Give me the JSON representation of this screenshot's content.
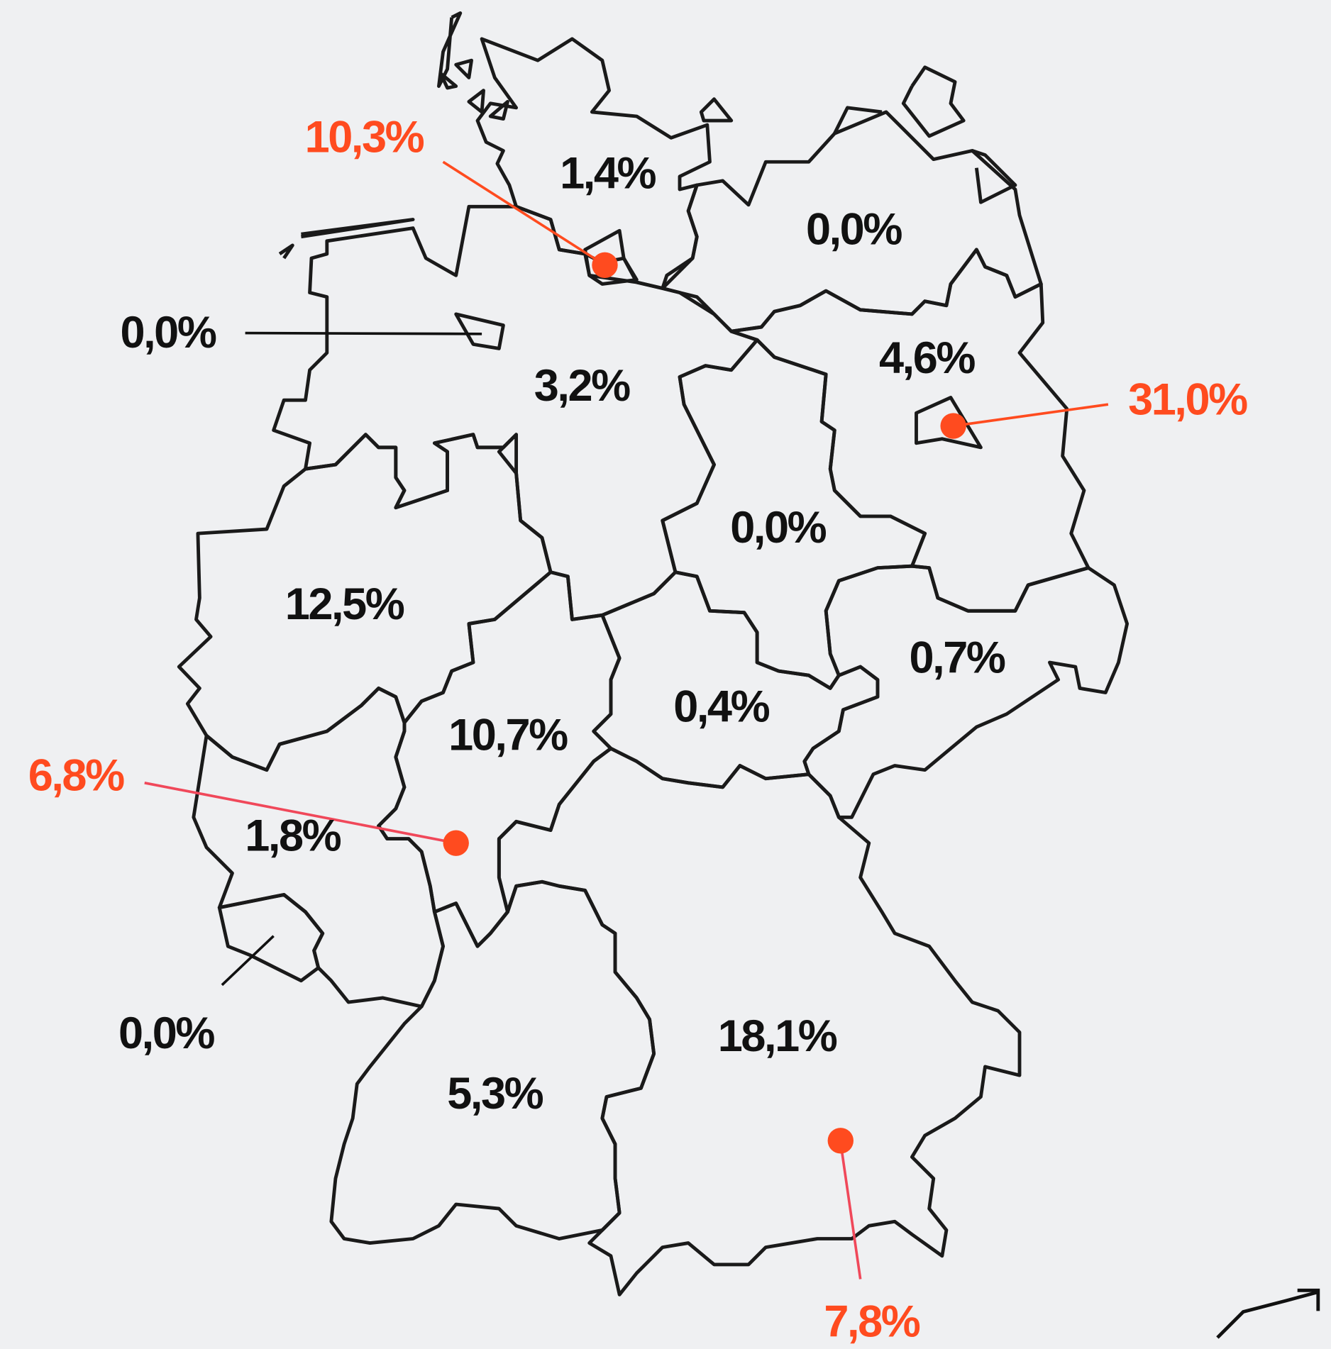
{
  "labels": [
    {
      "text": "1,4%",
      "color": "#111111"
    },
    {
      "text": "0,0%",
      "color": "#111111"
    },
    {
      "text": "10,3%",
      "color": "#ff4b1f"
    },
    {
      "text": "0,0%",
      "color": "#111111"
    },
    {
      "text": "3,2%",
      "color": "#111111"
    },
    {
      "text": "4,6%",
      "color": "#111111"
    },
    {
      "text": "31,0%",
      "color": "#ff4b1f"
    },
    {
      "text": "0,0%",
      "color": "#111111"
    },
    {
      "text": "12,5%",
      "color": "#111111"
    },
    {
      "text": "0,7%",
      "color": "#111111"
    },
    {
      "text": "0,4%",
      "color": "#111111"
    },
    {
      "text": "10,7%",
      "color": "#111111"
    },
    {
      "text": "6,8%",
      "color": "#ff4b1f"
    },
    {
      "text": "1,8%",
      "color": "#111111"
    },
    {
      "text": "0,0%",
      "color": "#111111"
    },
    {
      "text": "18,1%",
      "color": "#111111"
    },
    {
      "text": "5,3%",
      "color": "#111111"
    },
    {
      "text": "7,8%",
      "color": "#ff4b1f"
    }
  ]
}
